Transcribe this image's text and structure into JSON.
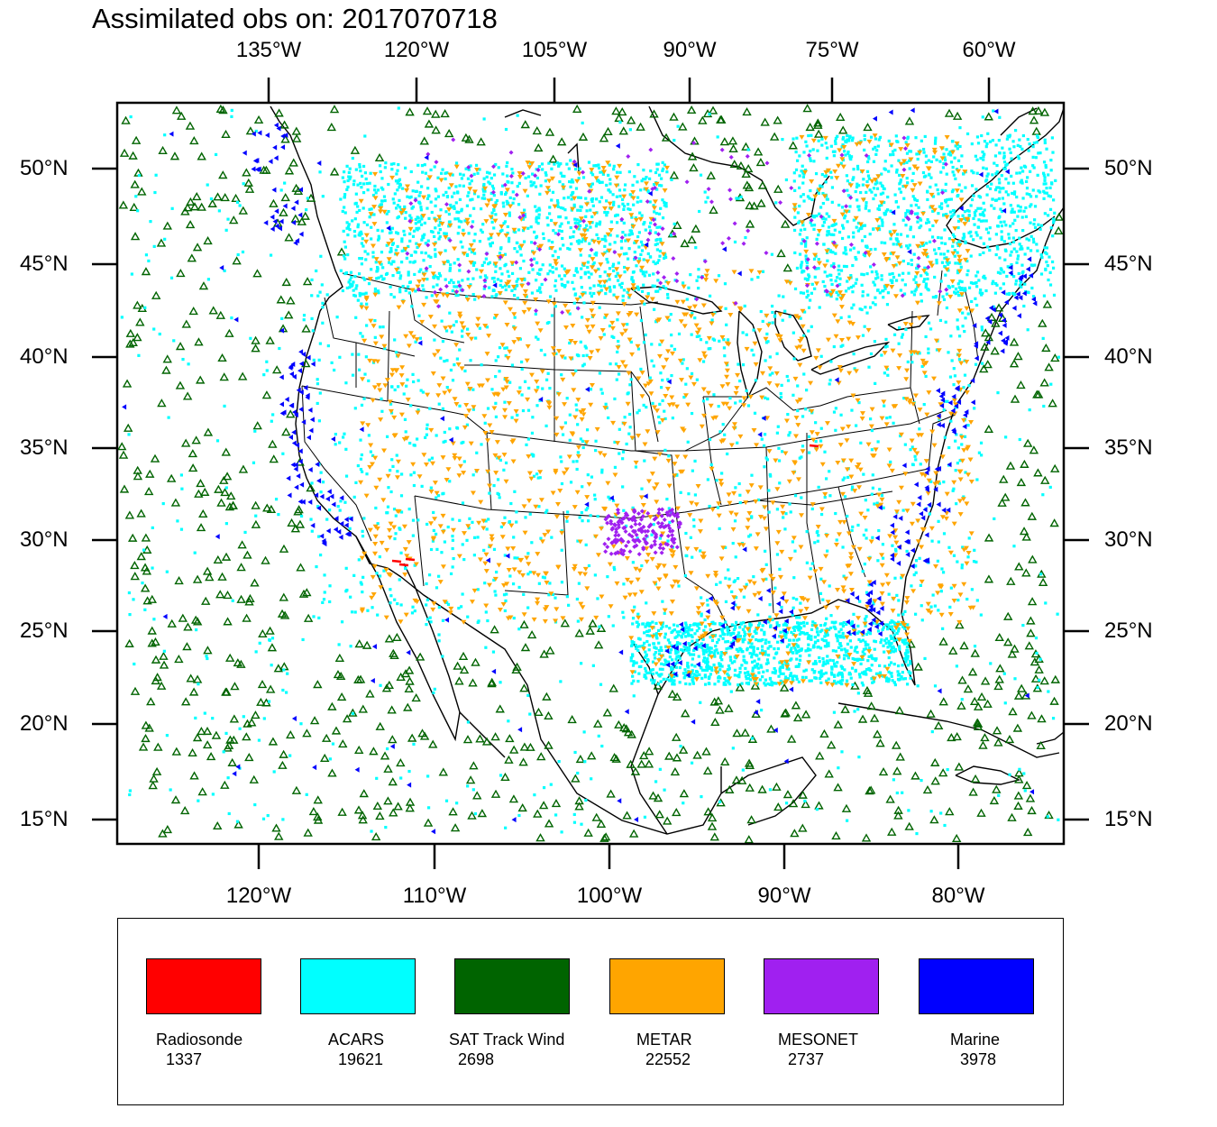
{
  "title": "Assimilated obs on: 2017070718",
  "top_axis": [
    "135°W",
    "120°W",
    "105°W",
    "90°W",
    "75°W",
    "60°W"
  ],
  "bottom_axis": [
    "120°W",
    "110°W",
    "100°W",
    "90°W",
    "80°W"
  ],
  "left_axis": [
    "50°N",
    "45°N",
    "40°N",
    "35°N",
    "30°N",
    "25°N",
    "20°N",
    "15°N"
  ],
  "right_axis": [
    "50°N",
    "45°N",
    "40°N",
    "35°N",
    "30°N",
    "25°N",
    "20°N",
    "15°N"
  ],
  "colors": {
    "radiosonde": "#ff0000",
    "acars": "#00ffff",
    "sat_track_wind": "#006400",
    "metar": "#ffa500",
    "mesonet": "#a020f0",
    "marine": "#0000ff"
  },
  "legend": [
    {
      "name": "Radiosonde",
      "count": "1337",
      "color": "#ff0000"
    },
    {
      "name": "ACARS",
      "count": "19621",
      "color": "#00ffff"
    },
    {
      "name": "SAT Track Wind",
      "count": "2698",
      "color": "#006400"
    },
    {
      "name": "METAR",
      "count": "22552",
      "color": "#ffa500"
    },
    {
      "name": "MESONET",
      "count": "2737",
      "color": "#a020f0"
    },
    {
      "name": "Marine",
      "count": "3978",
      "color": "#0000ff"
    }
  ]
}
